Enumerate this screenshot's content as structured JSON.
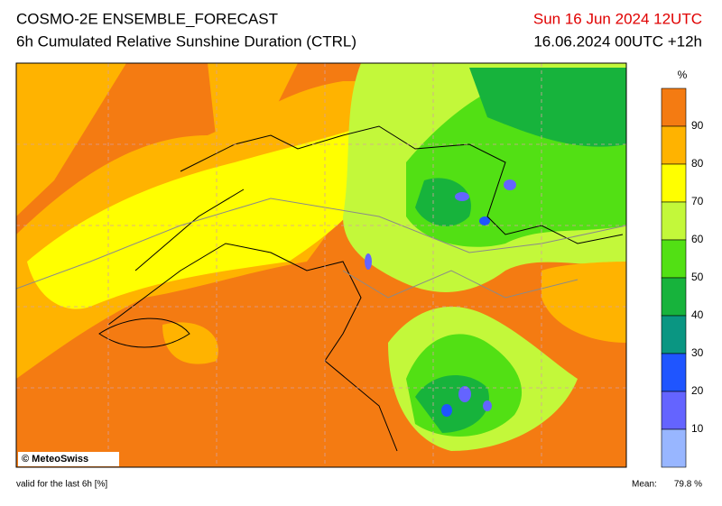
{
  "header": {
    "title": "COSMO-2E ENSEMBLE_FORECAST",
    "subtitle": "6h Cumulated Relative Sunshine Duration (CTRL)",
    "run_date": "Sun 16 Jun 2024 12UTC",
    "valid_time": "16.06.2024 00UTC +12h"
  },
  "legend": {
    "unit": "%",
    "ticks": [
      90,
      80,
      70,
      60,
      50,
      40,
      30,
      20,
      10
    ],
    "colors": [
      "#f47b12",
      "#ffb300",
      "#ffff00",
      "#c3f83a",
      "#52e014",
      "#17b33c",
      "#0a9682",
      "#1f55ff",
      "#6464ff",
      "#98b6ff"
    ]
  },
  "map": {
    "credit": "© MeteoSwiss"
  },
  "footer": {
    "note": "valid for the last 6h [%]",
    "mean_label": "Mean:",
    "mean_value": "79.8 %"
  }
}
